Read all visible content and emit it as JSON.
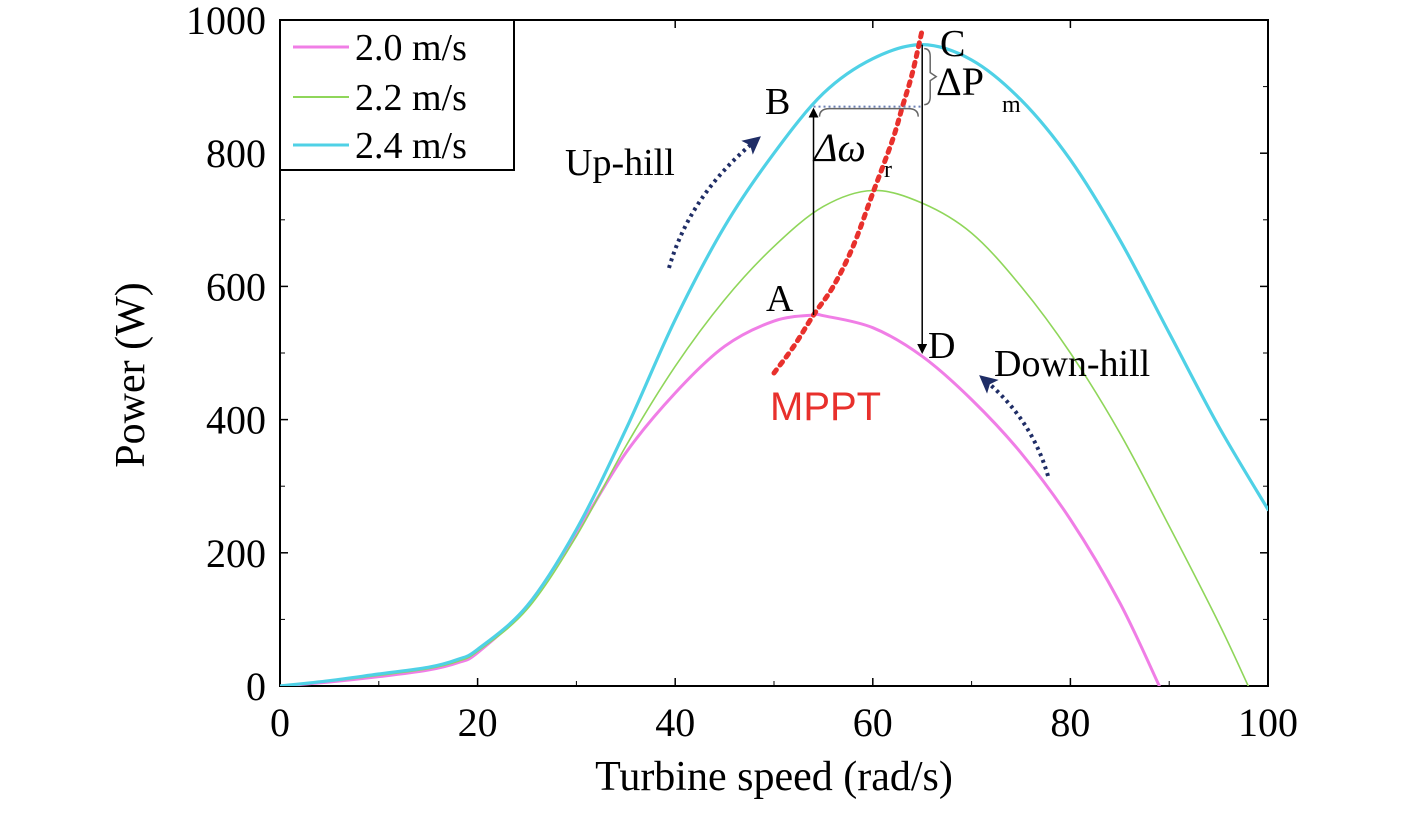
{
  "chart_data": {
    "type": "line",
    "xlabel": "Turbine speed (rad/s)",
    "ylabel": "Power (W)",
    "xlim": [
      0,
      100
    ],
    "ylim": [
      0,
      1000
    ],
    "x_ticks": [
      "0",
      "20",
      "40",
      "60",
      "80",
      "100"
    ],
    "y_ticks": [
      "0",
      "200",
      "400",
      "600",
      "800",
      "1000"
    ],
    "grid": false,
    "legend": "top-left",
    "series": [
      {
        "name": "2.0 m/s",
        "color": "#f07ee6",
        "x": [
          0,
          5,
          10,
          15,
          18,
          20,
          25,
          30,
          35,
          40,
          45,
          50,
          54,
          55,
          60,
          65,
          70,
          75,
          80,
          85,
          89
        ],
        "y": [
          0,
          6,
          14,
          24,
          35,
          50,
          120,
          230,
          350,
          440,
          510,
          548,
          557,
          556,
          538,
          495,
          430,
          350,
          250,
          125,
          0
        ]
      },
      {
        "name": "2.2 m/s",
        "color": "#8fd65a",
        "x": [
          0,
          5,
          10,
          15,
          18,
          20,
          25,
          30,
          35,
          40,
          45,
          50,
          55,
          60,
          65,
          70,
          75,
          80,
          85,
          90,
          95,
          98
        ],
        "y": [
          0,
          7,
          16,
          26,
          37,
          52,
          115,
          225,
          360,
          480,
          580,
          660,
          720,
          744,
          725,
          680,
          600,
          500,
          380,
          240,
          95,
          0
        ]
      },
      {
        "name": "2.4 m/s",
        "color": "#4fd1e6",
        "x": [
          0,
          5,
          10,
          15,
          18,
          20,
          25,
          30,
          35,
          40,
          45,
          50,
          55,
          60,
          65,
          70,
          75,
          80,
          85,
          90,
          95,
          100
        ],
        "y": [
          0,
          8,
          18,
          28,
          40,
          55,
          120,
          235,
          385,
          550,
          690,
          800,
          890,
          942,
          963,
          940,
          880,
          790,
          670,
          530,
          390,
          265
        ]
      },
      {
        "name": "MPPT",
        "color": "#e8302c",
        "x": [
          50,
          52,
          54,
          56,
          58,
          60,
          62,
          63,
          64,
          65
        ],
        "y": [
          470,
          510,
          557,
          600,
          660,
          740,
          820,
          870,
          920,
          985
        ]
      }
    ],
    "points": [
      {
        "label": "A",
        "x": 54,
        "y": 557
      },
      {
        "label": "B",
        "x": 54,
        "y": 870
      },
      {
        "label": "C",
        "x": 65,
        "y": 963
      },
      {
        "label": "D",
        "x": 65,
        "y": 497
      }
    ],
    "annotations": {
      "uphill": "Up-hill",
      "downhill": "Down-hill",
      "mppt": "MPPT",
      "delta_omega_main": "Δω",
      "delta_omega_sub": "r",
      "delta_p_main": "ΔP",
      "delta_p_sub": "m"
    }
  }
}
